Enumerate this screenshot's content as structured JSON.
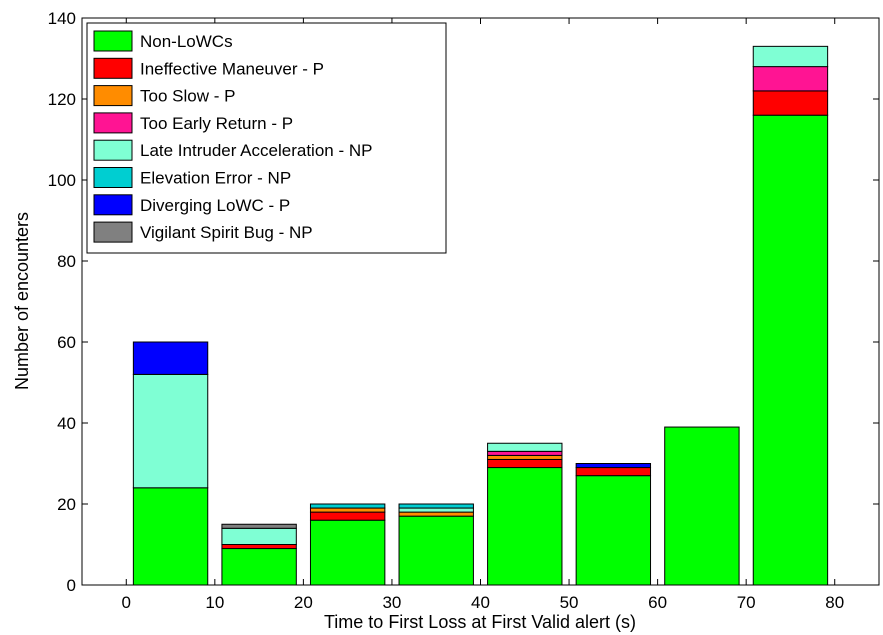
{
  "chart_data": {
    "type": "bar",
    "stacked": true,
    "xlabel": "Time to First Loss at First Valid alert (s)",
    "ylabel": "Number of encounters",
    "xlim": [
      -5,
      85
    ],
    "ylim": [
      0,
      140
    ],
    "xticks": [
      "0",
      "10",
      "20",
      "30",
      "40",
      "50",
      "60",
      "70",
      "80"
    ],
    "yticks": [
      "0",
      "20",
      "40",
      "60",
      "80",
      "100",
      "120",
      "140"
    ],
    "bins": [
      {
        "from": 0,
        "to": 10
      },
      {
        "from": 10,
        "to": 20
      },
      {
        "from": 20,
        "to": 30
      },
      {
        "from": 30,
        "to": 40
      },
      {
        "from": 40,
        "to": 50
      },
      {
        "from": 50,
        "to": 60
      },
      {
        "from": 60,
        "to": 70
      },
      {
        "from": 70,
        "to": 80
      }
    ],
    "grid": false,
    "legend_position": "top-left",
    "series": [
      {
        "name": "Non-LoWCs",
        "color": "#00ff00",
        "values": [
          24,
          9,
          16,
          17,
          29,
          27,
          39,
          116
        ]
      },
      {
        "name": "Ineffective Maneuver - P",
        "color": "#ff0000",
        "values": [
          0,
          1,
          2,
          0,
          2,
          2,
          0,
          6
        ]
      },
      {
        "name": "Too Slow - P",
        "color": "#ff8c00",
        "values": [
          0,
          0,
          1,
          1,
          1,
          0,
          0,
          0
        ]
      },
      {
        "name": "Too Early Return - P",
        "color": "#ff1493",
        "values": [
          0,
          0,
          0,
          0,
          1,
          0,
          0,
          6
        ]
      },
      {
        "name": "Late Intruder Acceleration - NP",
        "color": "#7fffd4",
        "values": [
          28,
          4,
          0,
          1,
          2,
          0,
          0,
          5
        ]
      },
      {
        "name": "Elevation Error - NP",
        "color": "#00ced1",
        "values": [
          0,
          0,
          1,
          1,
          0,
          0,
          0,
          0
        ]
      },
      {
        "name": "Diverging LoWC - P",
        "color": "#0000ff",
        "values": [
          8,
          0,
          0,
          0,
          0,
          1,
          0,
          0
        ]
      },
      {
        "name": "Vigilant Spirit Bug - NP",
        "color": "#808080",
        "values": [
          0,
          1,
          0,
          0,
          0,
          0,
          0,
          0
        ]
      }
    ]
  }
}
